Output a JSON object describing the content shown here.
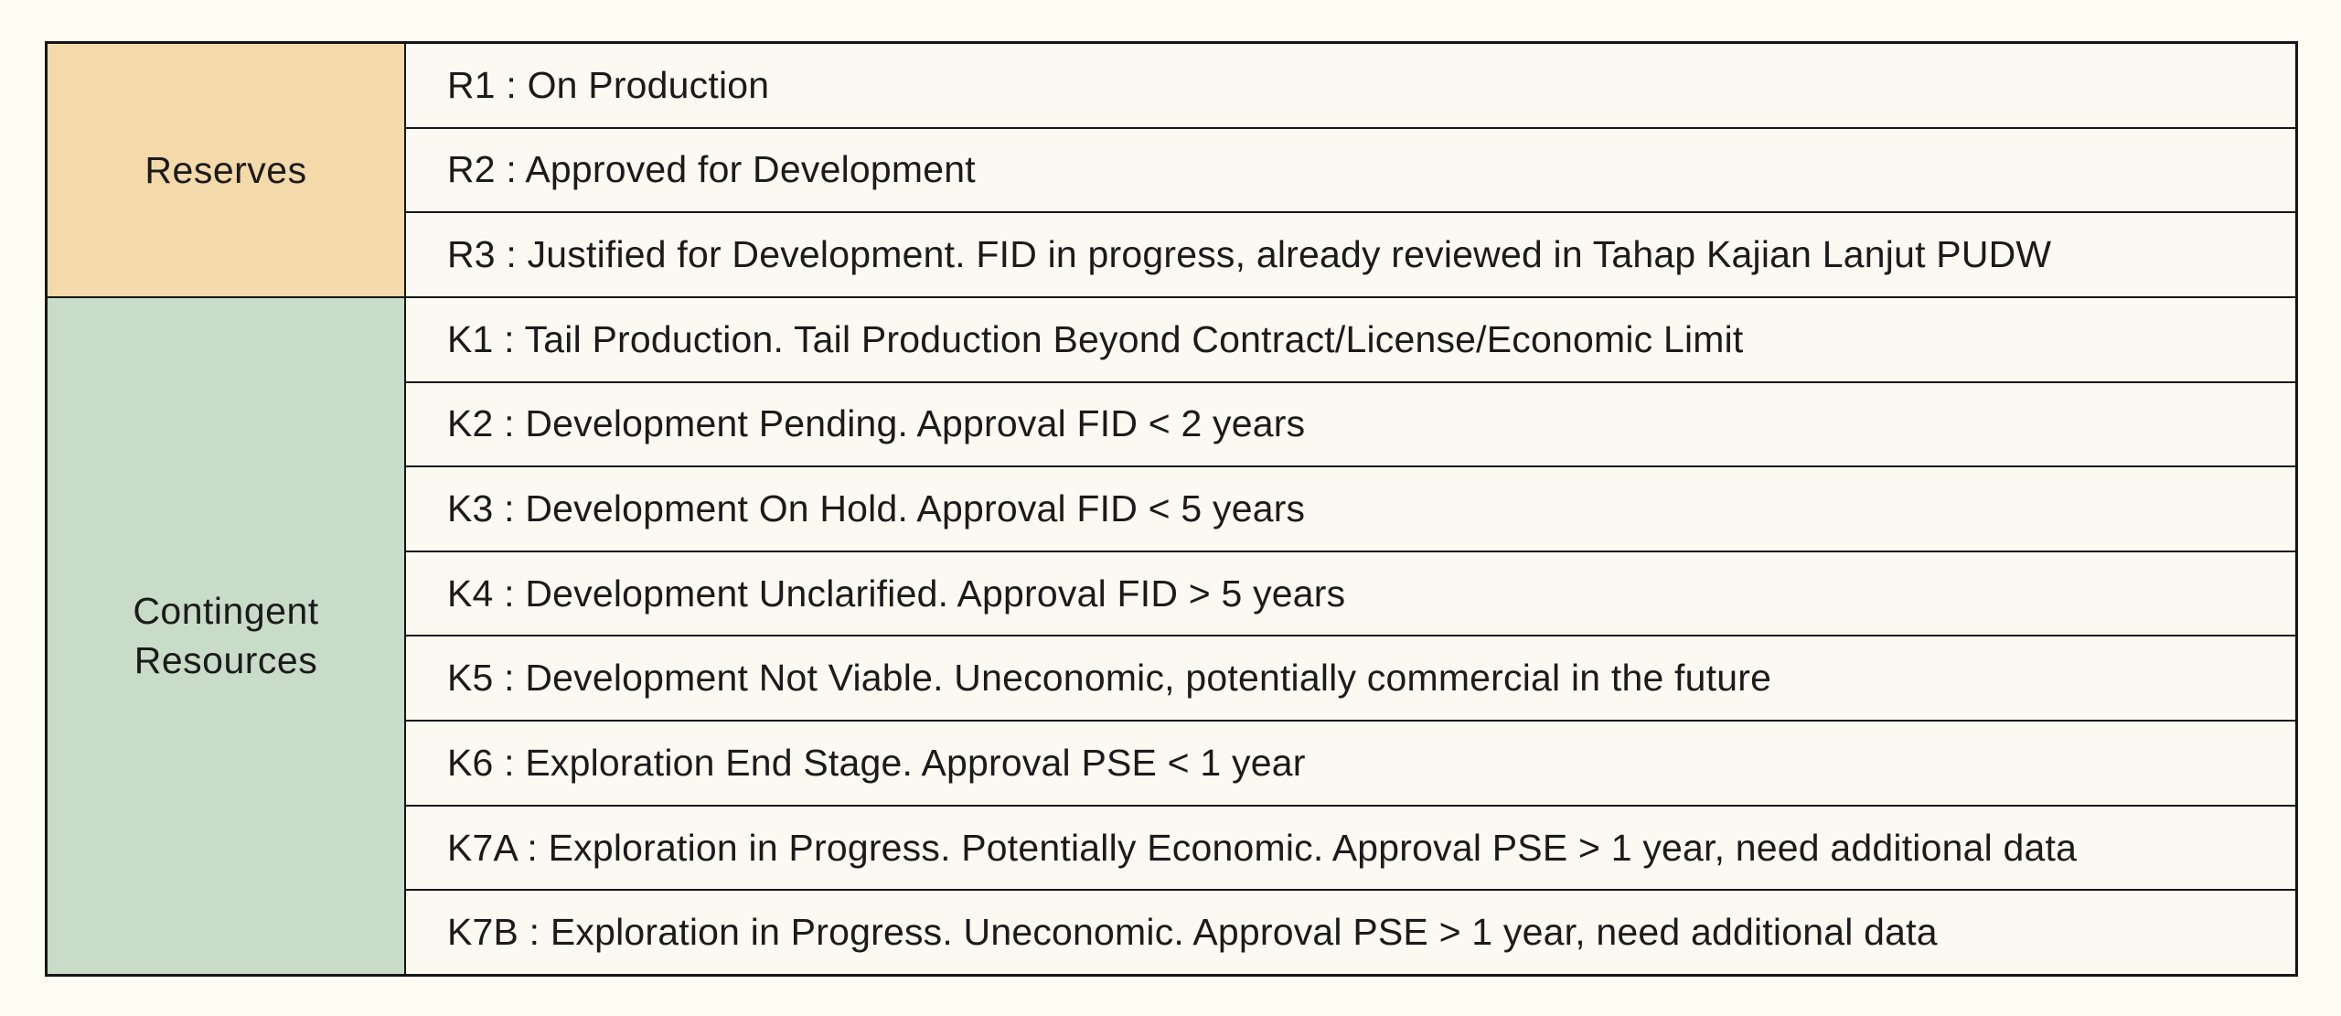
{
  "colors": {
    "page_bg": "#fdfcf2",
    "cell_bg": "#fbfaf2",
    "reserves_bg": "#f4d9aa",
    "contingent_bg": "#c8dcc7",
    "border": "#161616",
    "text": "#1b1b1b"
  },
  "table": {
    "sections": [
      {
        "label": "Reserves",
        "rows": [
          "R1 : On Production",
          "R2 : Approved for Development",
          "R3 : Justified for Development. FID in progress, already reviewed in Tahap Kajian Lanjut PUDW"
        ]
      },
      {
        "label": "Contingent Resources",
        "rows": [
          "K1 : Tail Production. Tail Production Beyond Contract/License/Economic Limit",
          "K2 : Development Pending. Approval FID < 2 years",
          "K3 : Development On Hold. Approval FID < 5 years",
          "K4 : Development Unclarified. Approval FID > 5 years",
          "K5 : Development Not Viable. Uneconomic, potentially commercial in the future",
          "K6 : Exploration End Stage. Approval PSE < 1 year",
          "K7A : Exploration in Progress. Potentially Economic. Approval PSE > 1 year, need additional data",
          "K7B : Exploration in Progress. Uneconomic. Approval PSE > 1 year, need additional data"
        ]
      }
    ]
  }
}
